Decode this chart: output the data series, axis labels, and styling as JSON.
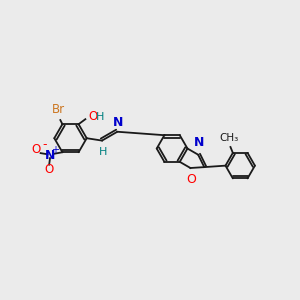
{
  "background_color": "#ebebeb",
  "bond_color": "#1a1a1a",
  "atom_colors": {
    "Br": "#cc7722",
    "O": "#ff0000",
    "N": "#0000cc",
    "H": "#008080",
    "C": "#1a1a1a"
  },
  "lw": 1.3,
  "r_hex": 0.55,
  "r_phen": 0.5
}
